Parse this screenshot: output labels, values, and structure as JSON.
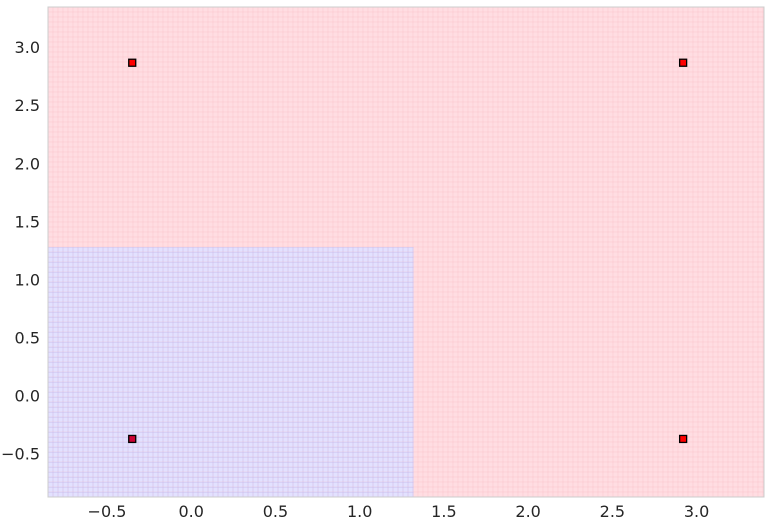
{
  "chart_data": {
    "type": "scatter",
    "title": "",
    "xlabel": "",
    "ylabel": "",
    "xlim": [
      -0.85,
      3.4
    ],
    "ylim": [
      -0.87,
      3.35
    ],
    "xticks": [
      -0.5,
      0.0,
      0.5,
      1.0,
      1.5,
      2.0,
      2.5,
      3.0
    ],
    "xtick_labels": [
      "−0.5",
      "0.0",
      "0.5",
      "1.0",
      "1.5",
      "2.0",
      "2.5",
      "3.0"
    ],
    "yticks": [
      -0.5,
      0.0,
      0.5,
      1.0,
      1.5,
      2.0,
      2.5,
      3.0
    ],
    "ytick_labels": [
      "−0.5",
      "0.0",
      "0.5",
      "1.0",
      "1.5",
      "2.0",
      "2.5",
      "3.0"
    ],
    "grid": true,
    "decision_regions": [
      {
        "class": "blue",
        "color": "#e2e1ff",
        "x_range": [
          -0.85,
          1.32
        ],
        "y_range": [
          -0.87,
          1.28
        ]
      },
      {
        "class": "red",
        "color": "#ffdde2",
        "rest_of_plane": true
      }
    ],
    "points": [
      {
        "x": -0.35,
        "y": 2.87,
        "color": "#ff0000"
      },
      {
        "x": 2.92,
        "y": 2.87,
        "color": "#ff0000"
      },
      {
        "x": -0.35,
        "y": -0.37,
        "color": "#cc0033"
      },
      {
        "x": 2.92,
        "y": -0.37,
        "color": "#ff0000"
      }
    ],
    "marker": "square",
    "marker_edge_color": "#000000"
  }
}
